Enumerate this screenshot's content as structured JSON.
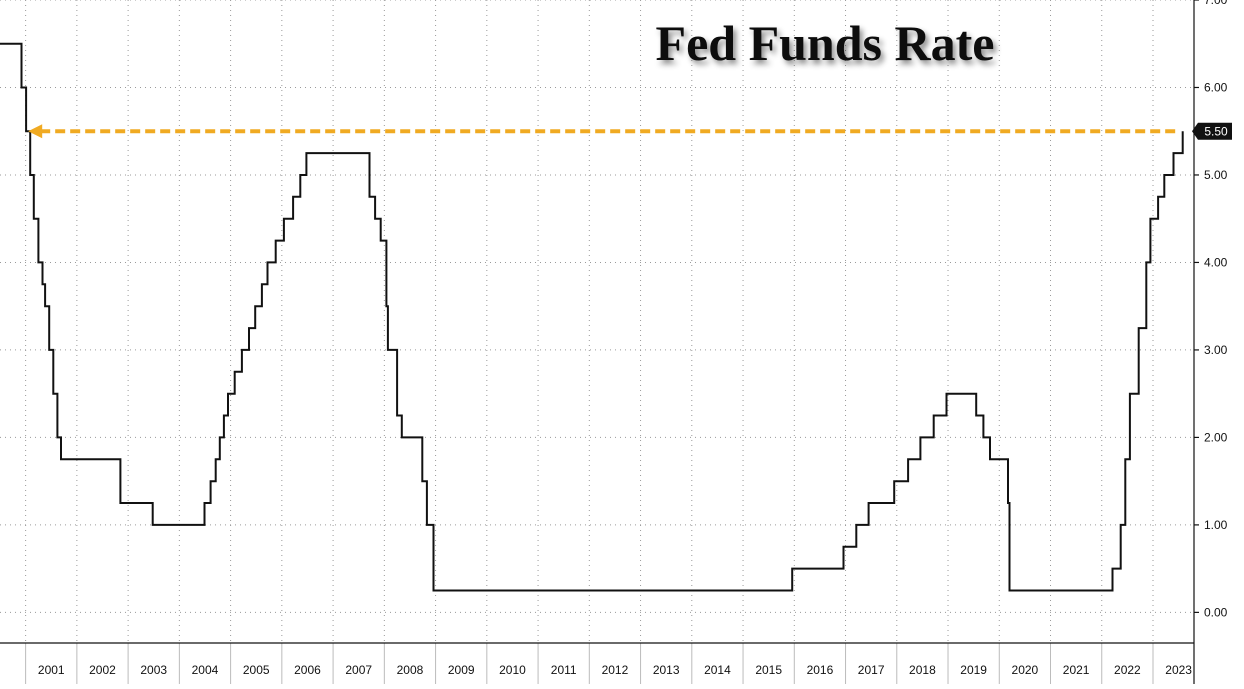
{
  "chart_data": {
    "type": "line",
    "title": "Fed Funds Rate",
    "xlabel": "",
    "ylabel": "",
    "x_ticks": [
      "2001",
      "2002",
      "2003",
      "2004",
      "2005",
      "2006",
      "2007",
      "2008",
      "2009",
      "2010",
      "2011",
      "2012",
      "2013",
      "2014",
      "2015",
      "2016",
      "2017",
      "2018",
      "2019",
      "2020",
      "2021",
      "2022",
      "2023"
    ],
    "xlim": [
      2000.5,
      2023.8
    ],
    "y_ticks": [
      "0.00",
      "1.00",
      "2.00",
      "3.00",
      "4.00",
      "5.00",
      "6.00",
      "7.00"
    ],
    "ylim": [
      -0.35,
      7.0
    ],
    "grid": true,
    "step": true,
    "series": [
      {
        "x": [
          2000.5,
          2000.92,
          2001.01,
          2001.09,
          2001.16,
          2001.25,
          2001.33,
          2001.38,
          2001.46,
          2001.54,
          2001.62,
          2001.69,
          2001.77,
          2001.85,
          2001.92,
          2002.85,
          2003.48,
          2004.49,
          2004.61,
          2004.71,
          2004.79,
          2004.87,
          2004.95,
          2005.08,
          2005.22,
          2005.36,
          2005.48,
          2005.61,
          2005.72,
          2005.88,
          2006.04,
          2006.22,
          2006.36,
          2006.48,
          2006.72,
          2006.82,
          2006.92,
          2007.71,
          2007.82,
          2007.93,
          2008.04,
          2008.07,
          2008.25,
          2008.34,
          2008.74,
          2008.83,
          2008.96,
          2015.96,
          2016.96,
          2017.21,
          2017.45,
          2017.95,
          2018.22,
          2018.46,
          2018.72,
          2018.97,
          2019.55,
          2019.69,
          2019.82,
          2020.17,
          2020.2,
          2022.21,
          2022.37,
          2022.46,
          2022.55,
          2022.72,
          2022.87,
          2022.95,
          2023.1,
          2023.22,
          2023.4,
          2023.58
        ],
        "y": [
          6.5,
          6.0,
          5.5,
          5.0,
          4.5,
          4.0,
          3.75,
          3.5,
          3.0,
          2.5,
          2.0,
          1.75,
          1.75,
          1.75,
          1.75,
          1.25,
          1.0,
          1.25,
          1.5,
          1.75,
          2.0,
          2.25,
          2.5,
          2.75,
          3.0,
          3.25,
          3.5,
          3.75,
          4.0,
          4.25,
          4.5,
          4.75,
          5.0,
          5.25,
          5.25,
          5.25,
          5.25,
          4.75,
          4.5,
          4.25,
          3.5,
          3.0,
          2.25,
          2.0,
          1.5,
          1.0,
          0.25,
          0.5,
          0.75,
          1.0,
          1.25,
          1.5,
          1.75,
          2.0,
          2.25,
          2.5,
          2.25,
          2.0,
          1.75,
          1.25,
          0.25,
          0.5,
          1.0,
          1.75,
          2.5,
          3.25,
          4.0,
          4.5,
          4.75,
          5.0,
          5.25,
          5.5
        ]
      }
    ],
    "reference_line": {
      "value": 5.5,
      "label": "5.50",
      "color": "#f0aa22",
      "style": "dashed-arrow"
    }
  },
  "colors": {
    "series": "#111111",
    "reference": "#f0aa22",
    "background": "#ffffff",
    "grid": "#9a9a9a"
  }
}
